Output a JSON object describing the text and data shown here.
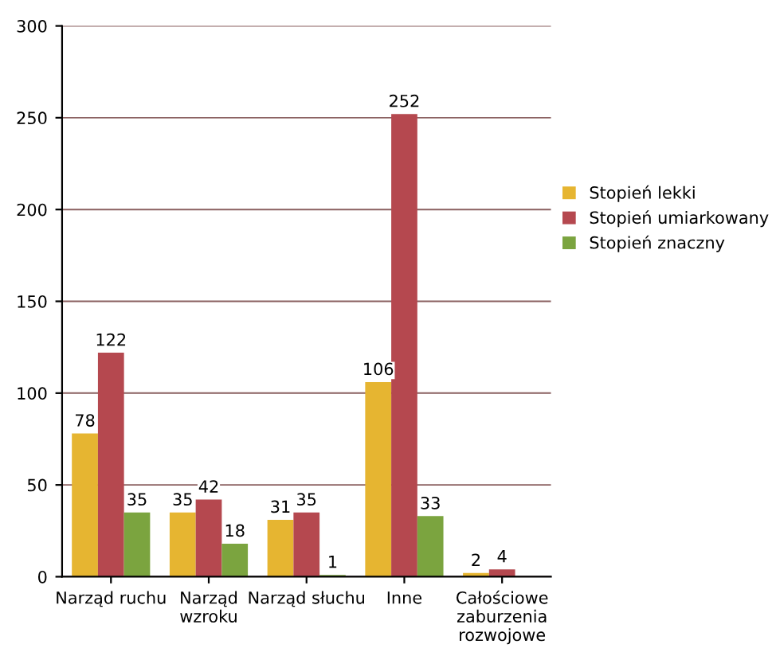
{
  "chart_data": {
    "type": "bar",
    "categories": [
      "Narząd ruchu",
      "Narząd\nwzroku",
      "Narząd słuchu",
      "Inne",
      "Całościowe\nzaburzenia\nrozwojowe"
    ],
    "series": [
      {
        "name": "Stopień lekki",
        "color": "#e6b531",
        "values": [
          78,
          35,
          31,
          106,
          2
        ],
        "value_labels": [
          "78",
          "35",
          "31",
          "106",
          "2"
        ]
      },
      {
        "name": "Stopień umiarkowany",
        "color": "#b5484f",
        "values": [
          122,
          42,
          35,
          252,
          4
        ],
        "value_labels": [
          "122",
          "42",
          "35",
          "252",
          "4"
        ]
      },
      {
        "name": "Stopień znaczny",
        "color": "#7ba43f",
        "values": [
          35,
          18,
          1,
          33,
          null
        ],
        "value_labels": [
          "35",
          "18",
          "1",
          "33",
          null
        ]
      }
    ],
    "ylim": [
      0,
      300
    ],
    "yticks": [
      0,
      50,
      100,
      150,
      200,
      250,
      300
    ],
    "grid": "y",
    "legend": "right"
  }
}
